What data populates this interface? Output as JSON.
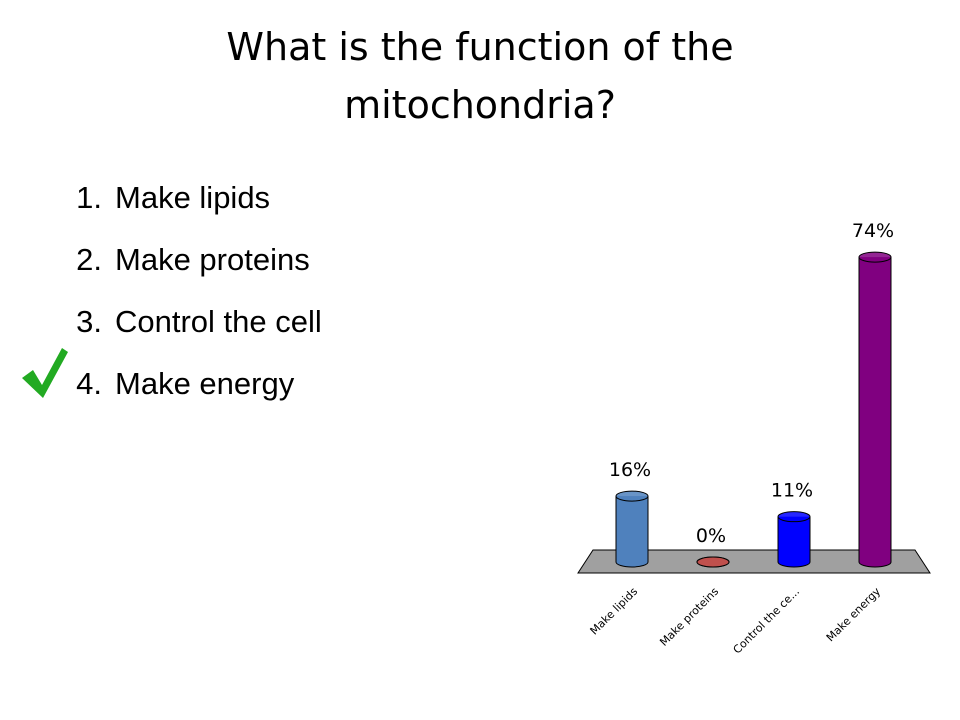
{
  "title_lines": [
    "What is the function of the",
    "mitochondria?"
  ],
  "options": [
    {
      "number": "1.",
      "text": "Make lipids"
    },
    {
      "number": "2.",
      "text": "Make proteins"
    },
    {
      "number": "3.",
      "text": "Control the cell"
    },
    {
      "number": "4.",
      "text": "Make energy"
    }
  ],
  "chart_data": {
    "type": "bar3d",
    "categories": [
      "Make lipids",
      "Make proteins",
      "Control the ce...",
      "Make energy"
    ],
    "values": [
      16,
      0,
      11,
      74
    ],
    "value_labels": [
      "16%",
      "0%",
      "11%",
      "74%"
    ],
    "colors": [
      "#4f81bd",
      "#c0504d",
      "#0000ff",
      "#800080"
    ]
  }
}
